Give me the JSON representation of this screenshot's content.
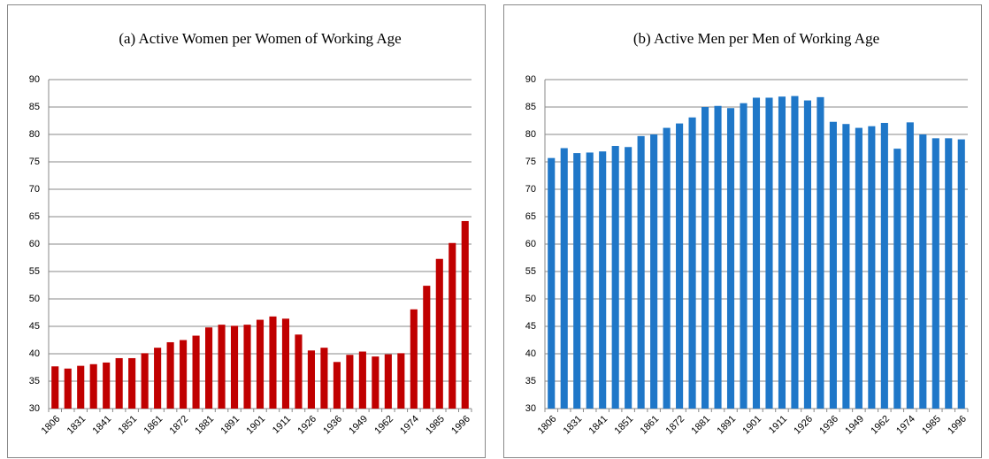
{
  "chart_data": [
    {
      "type": "bar",
      "title": "(a) Active Women per Women of Working Age",
      "categories": [
        "1806",
        null,
        "1831",
        null,
        "1841",
        null,
        "1851",
        null,
        "1861",
        null,
        "1872",
        null,
        "1881",
        null,
        "1891",
        null,
        "1901",
        null,
        "1911",
        null,
        "1926",
        null,
        "1936",
        null,
        "1949",
        null,
        "1962",
        null,
        "1974",
        null,
        "1985",
        null,
        "1996"
      ],
      "values": [
        37.7,
        37.3,
        37.8,
        38.1,
        38.4,
        39.2,
        39.2,
        40.1,
        41.1,
        42.1,
        42.5,
        43.3,
        44.8,
        45.3,
        45.1,
        45.3,
        46.2,
        46.8,
        46.4,
        43.5,
        40.6,
        41.1,
        38.5,
        39.8,
        40.4,
        39.5,
        39.9,
        40.1,
        48.1,
        52.4,
        57.3,
        60.2,
        64.2
      ],
      "color": "#c00000",
      "ylim": [
        30,
        90
      ],
      "yticks": [
        30,
        35,
        40,
        45,
        50,
        55,
        60,
        65,
        70,
        75,
        80,
        85,
        90
      ],
      "grid": true
    },
    {
      "type": "bar",
      "title": "(b) Active Men per Men of Working Age",
      "categories": [
        "1806",
        null,
        "1831",
        null,
        "1841",
        null,
        "1851",
        null,
        "1861",
        null,
        "1872",
        null,
        "1881",
        null,
        "1891",
        null,
        "1901",
        null,
        "1911",
        null,
        "1926",
        null,
        "1936",
        null,
        "1949",
        null,
        "1962",
        null,
        "1974",
        null,
        "1985",
        null,
        "1996"
      ],
      "values": [
        75.7,
        77.5,
        76.6,
        76.7,
        76.9,
        77.9,
        77.7,
        79.7,
        80.0,
        81.2,
        82.0,
        83.1,
        85.0,
        85.2,
        84.8,
        85.7,
        86.7,
        86.7,
        86.9,
        87.0,
        86.2,
        86.8,
        82.3,
        81.9,
        81.2,
        81.5,
        82.1,
        77.4,
        82.2,
        80.0,
        79.3,
        79.3,
        79.1
      ],
      "color": "#1f77c8",
      "ylim": [
        30,
        90
      ],
      "yticks": [
        30,
        35,
        40,
        45,
        50,
        55,
        60,
        65,
        70,
        75,
        80,
        85,
        90
      ],
      "grid": true
    }
  ]
}
